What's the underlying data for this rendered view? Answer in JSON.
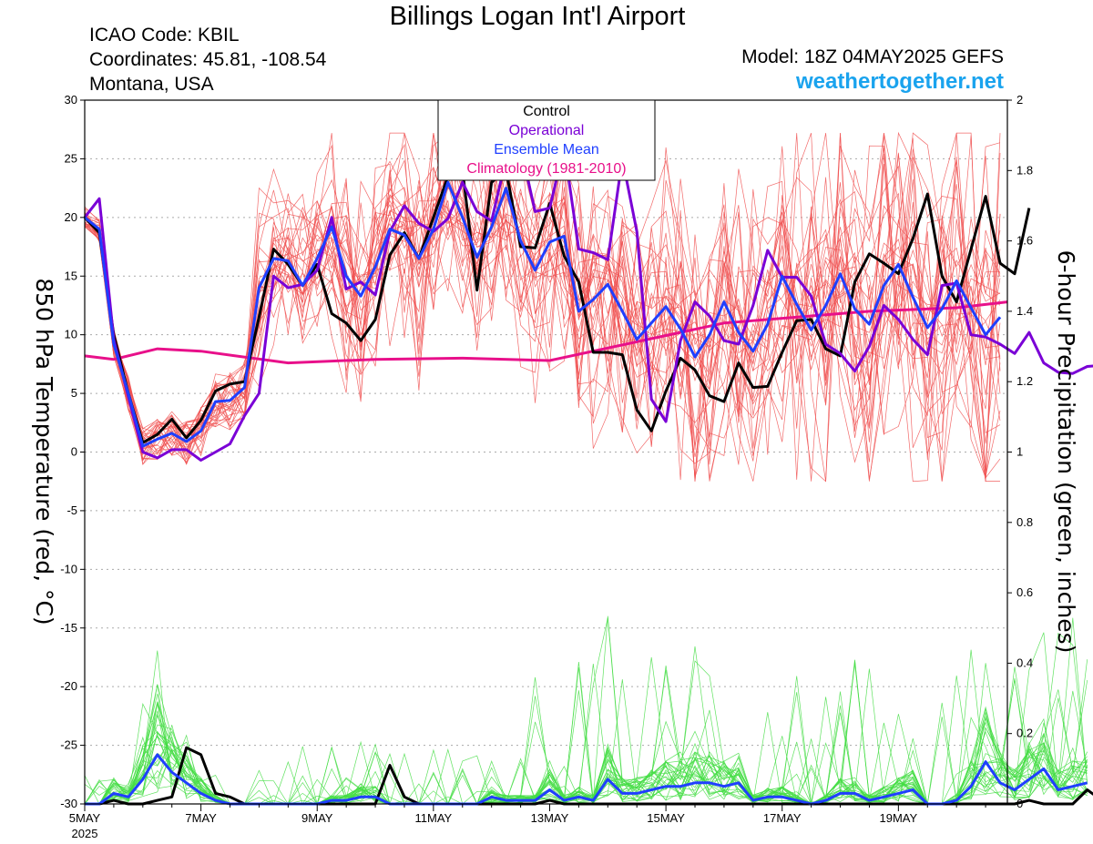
{
  "header": {
    "title": "Billings Logan Int'l Airport",
    "icao": "ICAO Code: KBIL",
    "coords": "Coordinates: 45.81, -108.54",
    "region": "Montana, USA",
    "model": "Model: 18Z 04MAY2025 GEFS",
    "brand": "weathertogether.net"
  },
  "colors": {
    "control": "#000000",
    "operational": "#7a00d6",
    "ensemble_mean": "#1f3fff",
    "climatology": "#e8108a",
    "members_temp": "#f05050",
    "members_precip": "#44dd44"
  },
  "chart_data": {
    "type": "line",
    "title": "Billings Logan Int'l Airport",
    "ylabel_left": "850 hPa Temperature (red, °C)",
    "ylabel_right": "6-hour Precipitation (green, inches)",
    "ylim_left": [
      -30,
      30
    ],
    "ylim_right": [
      0,
      2
    ],
    "yticks_left": [
      "30",
      "25",
      "20",
      "15",
      "10",
      "5",
      "0",
      "-5",
      "-10",
      "-15",
      "-20",
      "-25",
      "-30"
    ],
    "yticks_right": [
      "2",
      "1.8",
      "1.6",
      "1.4",
      "1.2",
      "1",
      "0.8",
      "0.6",
      "0.4",
      "0.2",
      "0"
    ],
    "x_start_day": 5,
    "x_end_day": 20.875,
    "x_step_days": 0.25,
    "xticks": [
      {
        "day": 5,
        "label": "5MAY",
        "sub": "2025"
      },
      {
        "day": 7,
        "label": "7MAY",
        "sub": ""
      },
      {
        "day": 9,
        "label": "9MAY",
        "sub": ""
      },
      {
        "day": 11,
        "label": "11MAY",
        "sub": ""
      },
      {
        "day": 13,
        "label": "13MAY",
        "sub": ""
      },
      {
        "day": 15,
        "label": "15MAY",
        "sub": ""
      },
      {
        "day": 17,
        "label": "17MAY",
        "sub": ""
      },
      {
        "day": 19,
        "label": "19MAY",
        "sub": ""
      }
    ],
    "legend": {
      "placement": "top-center",
      "entries": [
        "Control",
        "Operational",
        "Ensemble Mean",
        "Climatology (1981-2010)"
      ]
    },
    "grid": "dotted horizontal",
    "temp_series": [
      {
        "name": "Control",
        "values": [
          20,
          18.7,
          10,
          5,
          0.8,
          1.5,
          2.8,
          1.2,
          2.7,
          5.2,
          5.8,
          6,
          11.5,
          17.3,
          16,
          14.2,
          16,
          11.8,
          11,
          9.5,
          11.3,
          16.8,
          18.7,
          16.5,
          20,
          23.5,
          24,
          13.8,
          23,
          24,
          17.5,
          17.4,
          21.2,
          16.7,
          14.5,
          8.5,
          8.5,
          8.3,
          3.6,
          1.8,
          5.2,
          8,
          7,
          4.8,
          4.3,
          7.6,
          5.5,
          5.6,
          8.5,
          11.2,
          11.3,
          8.8,
          8.2,
          14.5,
          16.9,
          16.1,
          15.2,
          18.2,
          22,
          15,
          12.8,
          17.3,
          21.8,
          16.1,
          15.2,
          20.8
        ]
      },
      {
        "name": "Operational",
        "values": [
          20,
          21.6,
          9.6,
          4.7,
          0,
          -0.5,
          0.2,
          0.2,
          -0.7,
          0,
          0.7,
          3.1,
          5,
          15,
          14,
          14.3,
          15.5,
          20,
          13.9,
          14.5,
          13.4,
          18.8,
          21,
          19.5,
          18.8,
          19.9,
          23,
          20.5,
          19.7,
          25,
          26,
          20.5,
          20.8,
          26,
          17.3,
          17,
          16.4,
          25,
          18.8,
          4.5,
          2.6,
          9.5,
          12.8,
          11.6,
          9.5,
          9.2,
          12.5,
          17.2,
          14.9,
          14.9,
          13.3,
          9.2,
          8.4,
          6.9,
          9,
          12.5,
          11.3,
          9.6,
          8.3,
          14.2,
          14.4,
          10,
          9.8,
          9.2,
          8.4,
          10.2,
          7.6,
          6.8,
          6.7,
          7.3,
          7.4,
          8.6
        ]
      },
      {
        "name": "Ensemble Mean",
        "values": [
          20,
          19,
          9.2,
          5,
          0.5,
          1.1,
          1.6,
          0.9,
          1.8,
          4.3,
          4.4,
          5.5,
          14,
          16.5,
          16.3,
          14.2,
          16.5,
          19.2,
          15,
          13.3,
          15.8,
          19,
          18.5,
          16.5,
          19,
          23,
          20,
          16.6,
          19.2,
          22.5,
          18,
          15.5,
          17.9,
          18.4,
          12,
          13,
          14.3,
          12,
          9.6,
          11,
          12.4,
          10.5,
          8.1,
          10,
          12.8,
          10.2,
          8.6,
          10.9,
          15,
          12.6,
          10.4,
          12.5,
          15.2,
          12.2,
          10.9,
          14.2,
          16,
          13.2,
          10.6,
          12.2,
          14.6,
          12.3,
          10,
          11.5
        ]
      }
    ],
    "climatology": {
      "name": "Climatology (1981-2010)",
      "anchors": [
        [
          5,
          8.2
        ],
        [
          5.5,
          7.9
        ],
        [
          6.25,
          8.8
        ],
        [
          7,
          8.6
        ],
        [
          8.5,
          7.6
        ],
        [
          10,
          7.9
        ],
        [
          11.5,
          8
        ],
        [
          13,
          7.8
        ],
        [
          14.5,
          9.4
        ],
        [
          16,
          11
        ],
        [
          17,
          11.4
        ],
        [
          18.5,
          12
        ],
        [
          20,
          12.3
        ],
        [
          20.875,
          12.8
        ]
      ]
    },
    "precip_series": [
      {
        "name": "Control",
        "values": [
          0,
          0,
          0.01,
          0,
          0,
          0.01,
          0.02,
          0.16,
          0.14,
          0.03,
          0.02,
          0,
          0,
          0,
          0,
          0,
          0,
          0,
          0,
          0,
          0,
          0.11,
          0.02,
          0,
          0,
          0,
          0,
          0,
          0,
          0,
          0,
          0,
          0.01,
          0,
          0,
          0,
          0,
          0,
          0,
          0,
          0,
          0,
          0,
          0,
          0,
          0,
          0,
          0,
          0,
          0,
          0,
          0,
          0,
          0,
          0,
          0,
          0,
          0,
          0,
          0,
          0,
          0,
          0,
          0,
          0,
          0.01,
          0,
          0,
          0,
          0.04,
          0.01,
          0.01
        ]
      },
      {
        "name": "Ensemble Mean",
        "values": [
          0,
          0,
          0.03,
          0.02,
          0.07,
          0.14,
          0.09,
          0.06,
          0.03,
          0.01,
          0,
          0,
          0,
          0,
          0,
          0,
          0,
          0.01,
          0.01,
          0.02,
          0.02,
          0,
          0,
          0,
          0,
          0,
          0,
          0,
          0.02,
          0.01,
          0.01,
          0.01,
          0.04,
          0.01,
          0.02,
          0.01,
          0.07,
          0.03,
          0.03,
          0.04,
          0.05,
          0.05,
          0.06,
          0.06,
          0.05,
          0.06,
          0.01,
          0.02,
          0.02,
          0.01,
          0,
          0.01,
          0.03,
          0.03,
          0.01,
          0.02,
          0.03,
          0.04,
          0,
          0,
          0.01,
          0.05,
          0.12,
          0.06,
          0.04,
          0.07,
          0.1,
          0.04,
          0.05,
          0.06
        ]
      }
    ]
  }
}
